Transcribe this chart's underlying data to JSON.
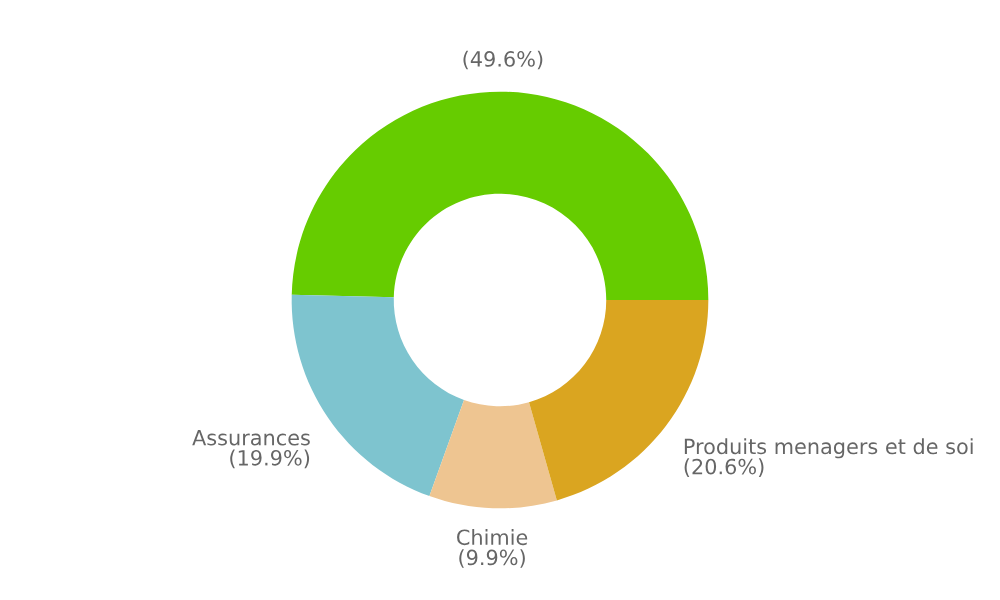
{
  "chart_data": {
    "type": "donut",
    "categories": [
      null,
      "Assurances",
      "Chimie",
      "Produits menagers et de soi"
    ],
    "values": [
      49.6,
      19.9,
      9.9,
      20.6
    ],
    "colors": [
      "#66cc00",
      "#7ec4cf",
      "#eec591",
      "#daa520"
    ],
    "value_labels": [
      "(49.6%)",
      "(19.9%)",
      "(9.9%)",
      "(20.6%)"
    ],
    "legend": false
  }
}
